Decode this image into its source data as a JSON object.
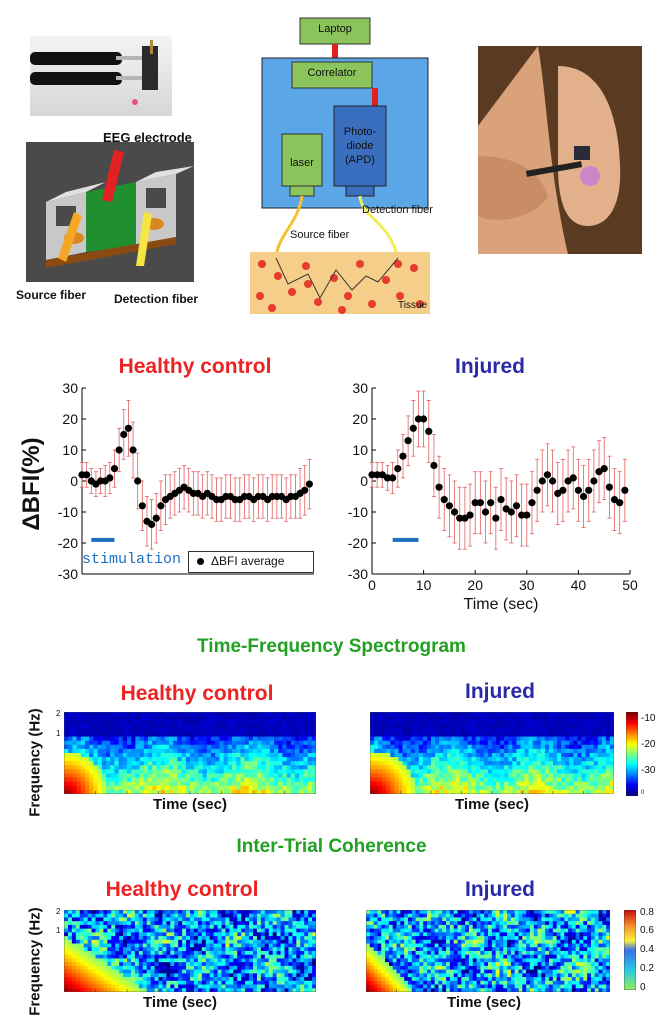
{
  "diagram": {
    "electrode_label": "EEG electrode",
    "source_fiber_label": "Source fiber",
    "detection_fiber_label": "Detection fiber",
    "laptop": "Laptop",
    "correlator": "Correlator",
    "laser": "laser",
    "photodiode_l1": "Photo-",
    "photodiode_l2": "diode",
    "photodiode_l3": "(APD)",
    "detection_fiber_side": "Detection fiber",
    "source_fiber_side": "Source fiber",
    "tissue": "Tissue"
  },
  "bfi": {
    "ylabel": "ΔBFI(%)",
    "xlabel": "Time (sec)",
    "stimulation_label": "stimulation",
    "legend_label": "ΔBFI average"
  },
  "chart_data": [
    {
      "type": "scatter",
      "title": "Healthy control",
      "ylabel": "ΔBFI(%)",
      "xlim": [
        0,
        50
      ],
      "ylim": [
        -30,
        30
      ],
      "yticks": [
        30,
        20,
        10,
        0,
        -10,
        -20,
        -30
      ],
      "stimulation": [
        2,
        7
      ],
      "legend": "ΔBFI average",
      "x": [
        0,
        1,
        2,
        3,
        4,
        5,
        6,
        7,
        8,
        9,
        10,
        11,
        12,
        13,
        14,
        15,
        16,
        17,
        18,
        19,
        20,
        21,
        22,
        23,
        24,
        25,
        26,
        27,
        28,
        29,
        30,
        31,
        32,
        33,
        34,
        35,
        36,
        37,
        38,
        39,
        40,
        41,
        42,
        43,
        44,
        45,
        46,
        47,
        48,
        49
      ],
      "y": [
        2,
        2,
        0,
        -1,
        0,
        0,
        1,
        4,
        10,
        15,
        17,
        10,
        0,
        -8,
        -13,
        -14,
        -12,
        -8,
        -6,
        -5,
        -4,
        -3,
        -2,
        -3,
        -4,
        -4,
        -5,
        -4,
        -5,
        -6,
        -6,
        -5,
        -5,
        -6,
        -6,
        -5,
        -5,
        -6,
        -5,
        -5,
        -6,
        -5,
        -5,
        -5,
        -6,
        -5,
        -5,
        -4,
        -3,
        -1
      ],
      "err": [
        4,
        4,
        4,
        4,
        4,
        5,
        5,
        6,
        7,
        8,
        9,
        9,
        9,
        8,
        8,
        8,
        8,
        8,
        8,
        7,
        7,
        7,
        7,
        7,
        7,
        7,
        7,
        7,
        7,
        7,
        7,
        7,
        7,
        7,
        7,
        7,
        7,
        7,
        7,
        7,
        7,
        7,
        7,
        7,
        7,
        7,
        7,
        8,
        8,
        8
      ]
    },
    {
      "type": "scatter",
      "title": "Injured",
      "xlabel": "Time (sec)",
      "xlim": [
        0,
        50
      ],
      "xticks": [
        0,
        10,
        20,
        30,
        40,
        50
      ],
      "ylim": [
        -30,
        30
      ],
      "yticks": [
        30,
        20,
        10,
        0,
        -10,
        -20,
        -30
      ],
      "stimulation": [
        4,
        9
      ],
      "x": [
        0,
        1,
        2,
        3,
        4,
        5,
        6,
        7,
        8,
        9,
        10,
        11,
        12,
        13,
        14,
        15,
        16,
        17,
        18,
        19,
        20,
        21,
        22,
        23,
        24,
        25,
        26,
        27,
        28,
        29,
        30,
        31,
        32,
        33,
        34,
        35,
        36,
        37,
        38,
        39,
        40,
        41,
        42,
        43,
        44,
        45,
        46,
        47,
        48,
        49
      ],
      "y": [
        2,
        2,
        2,
        1,
        1,
        4,
        8,
        13,
        17,
        20,
        20,
        16,
        5,
        -2,
        -6,
        -8,
        -10,
        -12,
        -12,
        -11,
        -7,
        -7,
        -10,
        -7,
        -12,
        -6,
        -9,
        -10,
        -8,
        -11,
        -11,
        -7,
        -3,
        0,
        2,
        0,
        -4,
        -3,
        0,
        1,
        -3,
        -5,
        -3,
        0,
        3,
        4,
        -2,
        -6,
        -7,
        -3
      ],
      "err": [
        4,
        4,
        4,
        4,
        5,
        6,
        7,
        8,
        9,
        9,
        9,
        10,
        10,
        10,
        10,
        10,
        10,
        10,
        10,
        10,
        10,
        10,
        10,
        10,
        10,
        10,
        10,
        10,
        10,
        10,
        10,
        10,
        10,
        10,
        10,
        10,
        10,
        10,
        10,
        10,
        10,
        10,
        10,
        10,
        10,
        10,
        10,
        10,
        10,
        10
      ]
    },
    {
      "type": "heatmap",
      "title": "Healthy control",
      "ylabel": "Frequency (Hz)",
      "xlabel": "Time (sec)",
      "yticks": [
        "2",
        "1"
      ],
      "group": "Time-Frequency Spectrogram"
    },
    {
      "type": "heatmap",
      "title": "Injured",
      "xlabel": "Time (sec)",
      "colorbar_ticks": [
        "-10",
        "-20",
        "-30",
        "0"
      ],
      "group": "Time-Frequency Spectrogram"
    },
    {
      "type": "heatmap",
      "title": "Healthy control",
      "ylabel": "Frequency (Hz)",
      "xlabel": "Time (sec)",
      "yticks": [
        "2",
        "1"
      ],
      "group": "Inter-Trial Coherence"
    },
    {
      "type": "heatmap",
      "title": "Injured",
      "xlabel": "Time (sec)",
      "colorbar_ticks": [
        "0.8",
        "0.6",
        "0.4",
        "0.2",
        "0"
      ],
      "group": "Inter-Trial Coherence"
    }
  ],
  "spectrogram": {
    "section_title": "Time-Frequency Spectrogram",
    "healthy": "Healthy control",
    "injured": "Injured",
    "ylabel": "Frequency (Hz)",
    "xlabel": "Time (sec)",
    "yt2": "2",
    "yt1": "1",
    "cb": [
      "-10",
      "-20",
      "-30",
      "0"
    ]
  },
  "itc": {
    "section_title": "Inter-Trial Coherence",
    "healthy": "Healthy control",
    "injured": "Injured",
    "ylabel": "Frequency (Hz)",
    "xlabel": "Time (sec)",
    "yt2": "2",
    "yt1": "1",
    "cb": [
      "0.8",
      "0.6",
      "0.4",
      "0.2",
      "0"
    ]
  },
  "colors": {
    "title_red": "#ee2222",
    "title_blue": "#2a2aa8",
    "section_green": "#22a022",
    "errorbar": "#e06060",
    "stim_bar": "#1f6fc0"
  }
}
